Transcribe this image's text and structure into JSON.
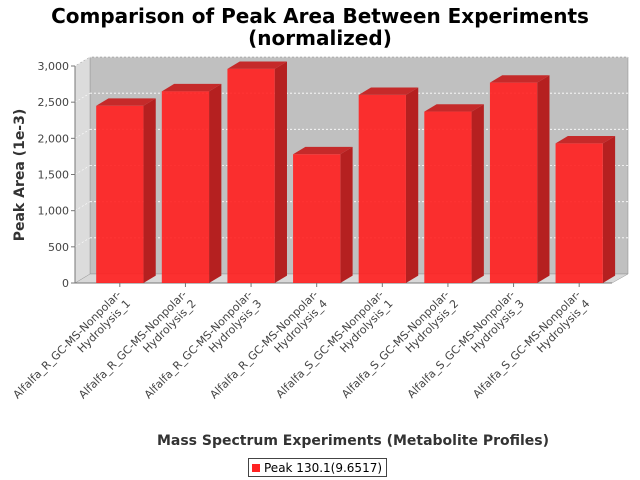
{
  "chart_data": {
    "type": "bar",
    "title_line1": "Comparison of Peak Area Between Experiments",
    "title_line2": "(normalized)",
    "xlabel": "Mass Spectrum Experiments (Metabolite Profiles)",
    "ylabel": "Peak Area (1e-3)",
    "ylim": [
      0,
      3000
    ],
    "yticks": [
      "0",
      "500",
      "1,000",
      "1,500",
      "2,000",
      "2,500",
      "3,000"
    ],
    "ytick_values": [
      0,
      500,
      1000,
      1500,
      2000,
      2500,
      3000
    ],
    "categories": [
      [
        "Alfalfa_R_GC-MS-Nonpolar-",
        "Hydrolysis_1"
      ],
      [
        "Alfalfa_R_GC-MS-Nonpolar-",
        "Hydrolysis_2"
      ],
      [
        "Alfalfa_R_GC-MS-Nonpolar-",
        "Hydrolysis_3"
      ],
      [
        "Alfalfa_R_GC-MS-Nonpolar-",
        "Hydrolysis_4"
      ],
      [
        "Alfalfa_S_GC-MS-Nonpolar-",
        "Hydrolysis_1"
      ],
      [
        "Alfalfa_S_GC-MS-Nonpolar-",
        "Hydrolysis_2"
      ],
      [
        "Alfalfa_S_GC-MS-Nonpolar-",
        "Hydrolysis_3"
      ],
      [
        "Alfalfa_S_GC-MS-Nonpolar-",
        "Hydrolysis_4"
      ]
    ],
    "series": [
      {
        "name": "Peak 130.1(9.6517)",
        "color": "#ff2222",
        "values": [
          2450,
          2650,
          2960,
          1780,
          2600,
          2370,
          2770,
          1930
        ]
      }
    ],
    "grid": true,
    "legend_position": "bottom"
  }
}
